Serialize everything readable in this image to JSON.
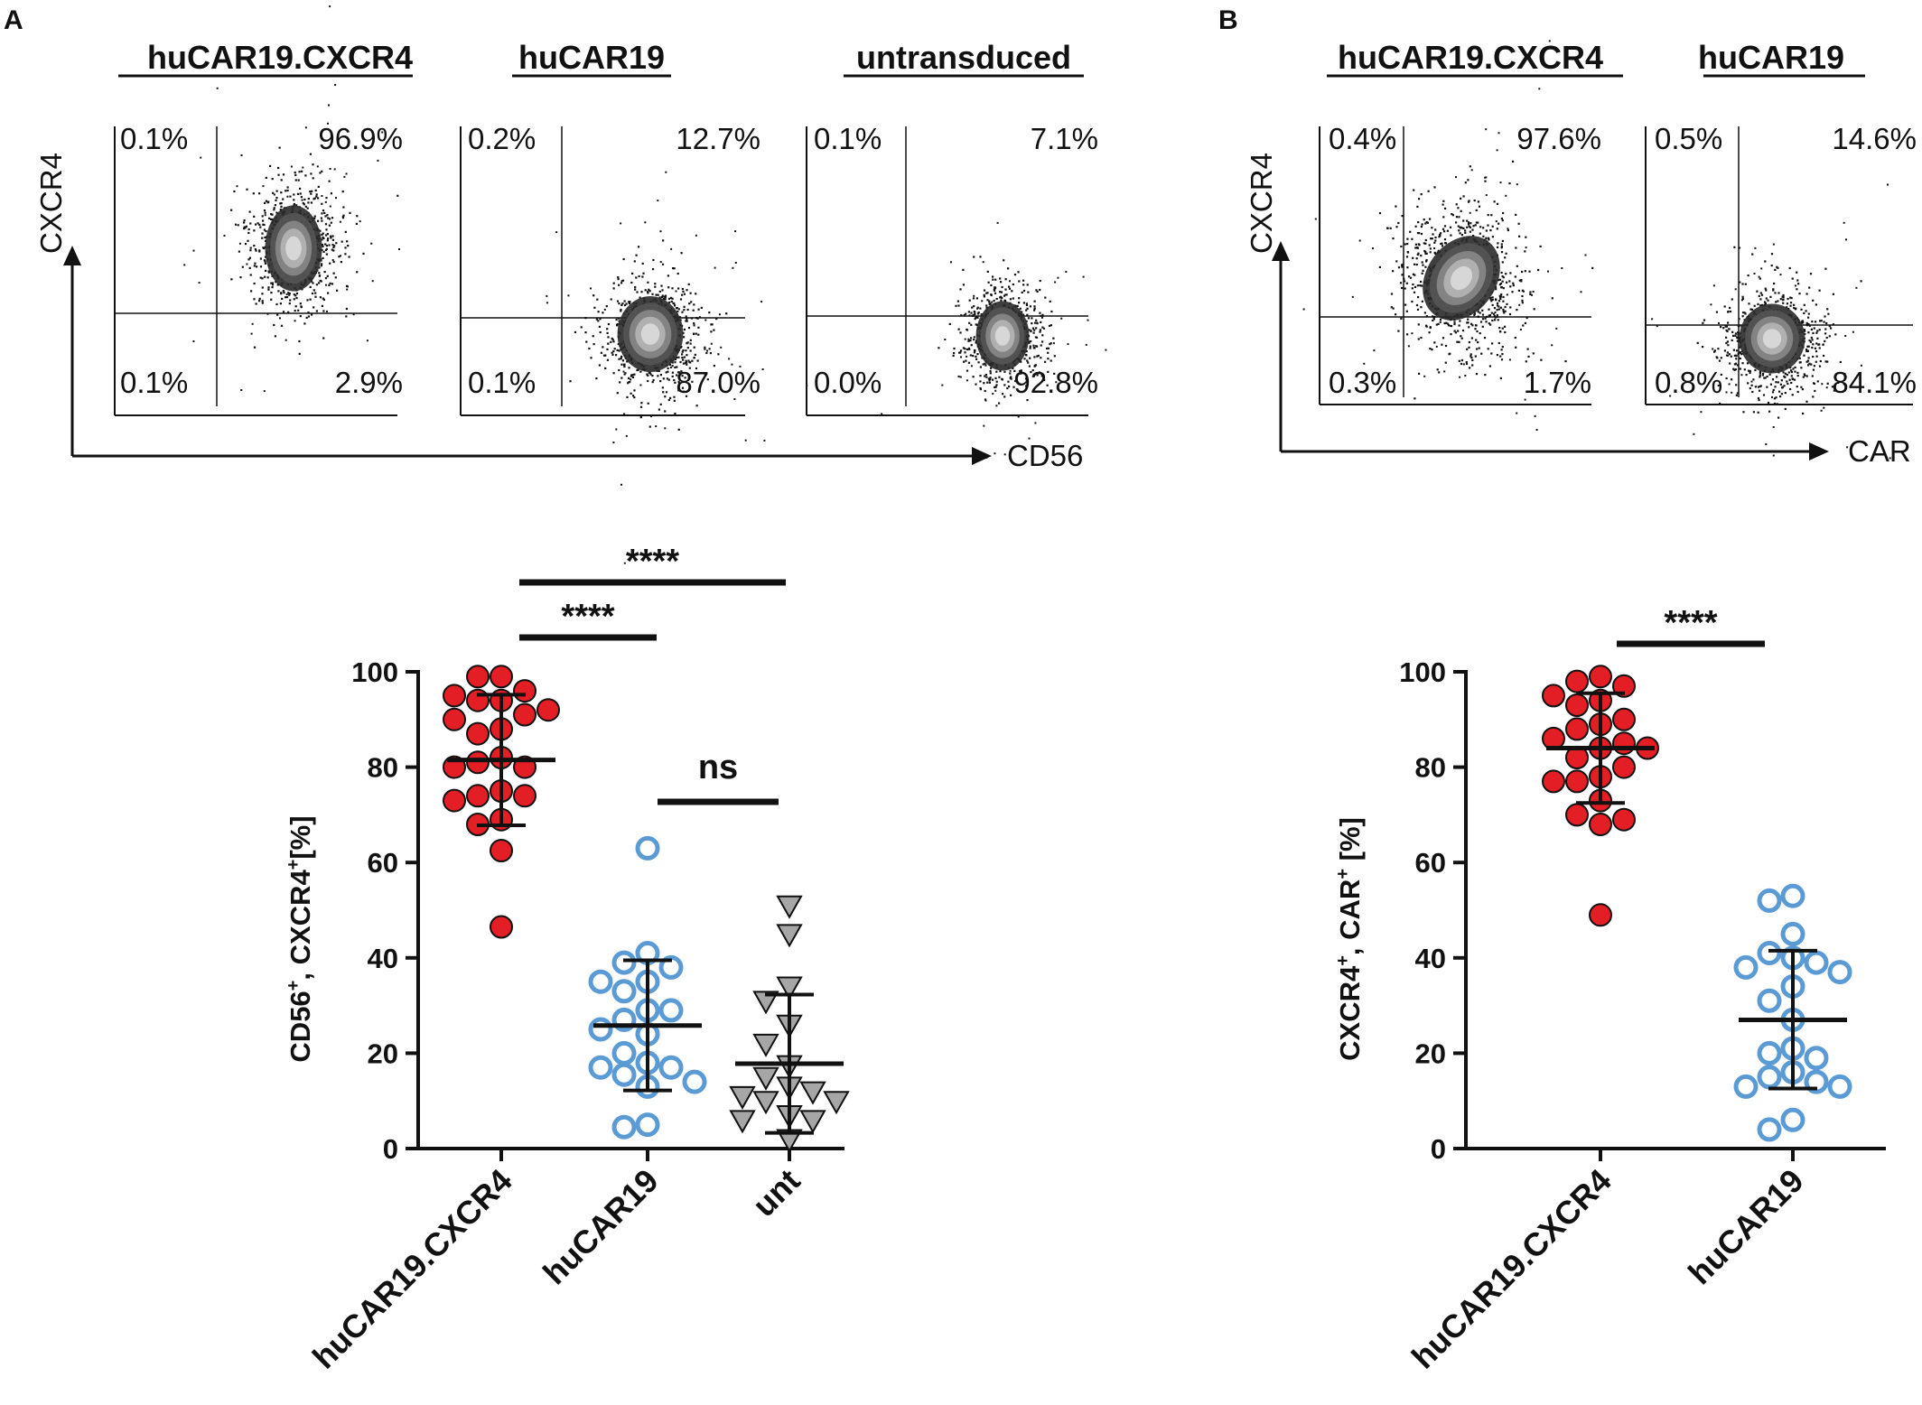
{
  "panel_labels": [
    "A",
    "B"
  ],
  "flow_plots": [
    {
      "title": "huCAR19.CXCR4",
      "quadrants": {
        "ul": "0.1%",
        "ur": "96.9%",
        "ll": "0.1%",
        "lr": "2.9%"
      }
    },
    {
      "title": "huCAR19",
      "quadrants": {
        "ul": "0.2%",
        "ur": "12.7%",
        "ll": "0.1%",
        "lr": "87.0%"
      }
    },
    {
      "title": "untransduced",
      "quadrants": {
        "ul": "0.1%",
        "ur": "7.1%",
        "ll": "0.0%",
        "lr": "92.8%"
      }
    },
    {
      "title": "huCAR19.CXCR4",
      "quadrants": {
        "ul": "0.4%",
        "ur": "97.6%",
        "ll": "0.3%",
        "lr": "1.7%"
      }
    },
    {
      "title": "huCAR19",
      "quadrants": {
        "ul": "0.5%",
        "ur": "14.6%",
        "ll": "0.8%",
        "lr": "84.1%"
      }
    }
  ],
  "flow_axes": {
    "A": {
      "y": "CXCR4",
      "x": "CD56"
    },
    "B": {
      "y": "CXCR4",
      "x": "CAR"
    }
  },
  "colors": {
    "red_fill": "#e31e24",
    "blue_stroke": "#5b9bd5",
    "gray_fill": "#a6a6a6",
    "ink": "#111111"
  },
  "chart_data": [
    {
      "type": "scatter",
      "panel": "A",
      "ylabel_main": "CD56",
      "ylabel_sup1": "+",
      "ylabel_mid": ", CXCR4",
      "ylabel_sup2": "+",
      "ylabel_end": "[%]",
      "ylim": [
        0,
        100
      ],
      "yticks": [
        "0",
        "20",
        "40",
        "60",
        "80",
        "100"
      ],
      "categories": [
        "huCAR19.CXCR4",
        "huCAR19",
        "unt"
      ],
      "series": [
        {
          "name": "huCAR19.CXCR4",
          "marker": "circle-filled-red",
          "mean": 81.5,
          "sd_low": 67.8,
          "sd_high": 95.2,
          "values": [
            99,
            95,
            99,
            94,
            94,
            96,
            92,
            91,
            90,
            88,
            87,
            82,
            81,
            80,
            80,
            75,
            74,
            74,
            73,
            69,
            68,
            62.5,
            46.5
          ]
        },
        {
          "name": "huCAR19",
          "marker": "circle-open-blue",
          "mean": 25.8,
          "sd_low": 12.2,
          "sd_high": 39.5,
          "values": [
            63,
            41,
            39,
            38,
            35,
            35,
            33,
            29,
            29,
            27,
            25,
            24,
            20,
            18,
            17,
            17,
            15.5,
            14,
            13,
            5,
            4.5
          ]
        },
        {
          "name": "unt",
          "marker": "triangle-down-gray",
          "mean": 17.8,
          "sd_low": 3.3,
          "sd_high": 32.3,
          "values": [
            51,
            45,
            34,
            31,
            26,
            22,
            17.5,
            15,
            13,
            12,
            11,
            10,
            10,
            7,
            6,
            6,
            2
          ]
        }
      ],
      "significance": [
        {
          "label": "****",
          "between": [
            "huCAR19.CXCR4",
            "unt"
          ]
        },
        {
          "label": "****",
          "between": [
            "huCAR19.CXCR4",
            "huCAR19"
          ]
        },
        {
          "label": "ns",
          "between": [
            "huCAR19",
            "unt"
          ]
        }
      ]
    },
    {
      "type": "scatter",
      "panel": "B",
      "ylabel_main": "CXCR4",
      "ylabel_sup1": "+",
      "ylabel_mid": ", CAR",
      "ylabel_sup2": "+",
      "ylabel_end": " [%]",
      "ylim": [
        0,
        100
      ],
      "yticks": [
        "0",
        "20",
        "40",
        "60",
        "80",
        "100"
      ],
      "categories": [
        "huCAR19.CXCR4",
        "huCAR19"
      ],
      "series": [
        {
          "name": "huCAR19.CXCR4",
          "marker": "circle-filled-red",
          "mean": 84.0,
          "sd_low": 72.5,
          "sd_high": 95.5,
          "values": [
            99,
            98,
            97,
            95,
            94,
            93,
            90,
            89,
            88,
            86,
            85,
            84,
            84,
            82,
            80,
            78,
            77,
            77,
            73,
            70,
            69,
            68,
            49
          ]
        },
        {
          "name": "huCAR19",
          "marker": "circle-open-blue",
          "mean": 27.0,
          "sd_low": 12.6,
          "sd_high": 41.5,
          "values": [
            53,
            52,
            45,
            41,
            40,
            39,
            38,
            37,
            34,
            31,
            27,
            21,
            20,
            19,
            16,
            15,
            14,
            13,
            13,
            6,
            4
          ]
        }
      ],
      "significance": [
        {
          "label": "****",
          "between": [
            "huCAR19.CXCR4",
            "huCAR19"
          ]
        }
      ]
    }
  ]
}
